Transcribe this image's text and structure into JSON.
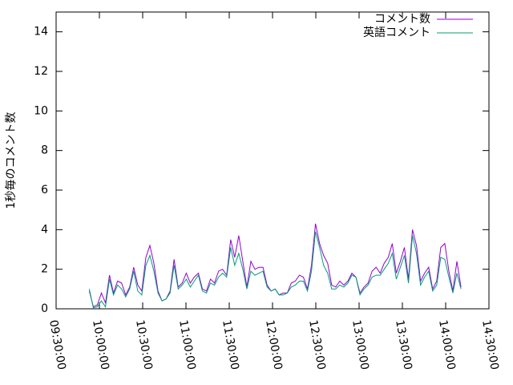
{
  "chart_data": {
    "type": "line",
    "ylabel": "1秒毎のコメント数",
    "xlim": [
      "09:30:00",
      "14:30:00"
    ],
    "xticks": [
      "09:30:00",
      "10:00:00",
      "10:30:00",
      "11:00:00",
      "11:30:00",
      "12:00:00",
      "12:30:00",
      "13:00:00",
      "13:30:00",
      "14:00:00",
      "14:30:00"
    ],
    "ylim": [
      0,
      15
    ],
    "yticks": [
      0,
      2,
      4,
      6,
      8,
      10,
      12,
      14
    ],
    "legend": "top-right",
    "x": [
      "09:53:00",
      "09:55:48",
      "09:58:36",
      "10:01:24",
      "10:04:12",
      "10:07:00",
      "10:09:48",
      "10:12:36",
      "10:15:24",
      "10:18:12",
      "10:21:00",
      "10:23:48",
      "10:26:36",
      "10:29:24",
      "10:32:12",
      "10:35:00",
      "10:37:48",
      "10:40:36",
      "10:43:24",
      "10:46:12",
      "10:49:00",
      "10:51:48",
      "10:54:36",
      "10:57:24",
      "11:00:12",
      "11:03:00",
      "11:05:48",
      "11:08:36",
      "11:11:24",
      "11:14:12",
      "11:17:00",
      "11:19:48",
      "11:22:36",
      "11:25:24",
      "11:28:12",
      "11:31:00",
      "11:33:48",
      "11:36:36",
      "11:39:24",
      "11:42:12",
      "11:45:00",
      "11:47:48",
      "11:50:36",
      "11:53:24",
      "11:56:12",
      "11:59:00",
      "12:01:48",
      "12:04:36",
      "12:07:24",
      "12:10:12",
      "12:13:00",
      "12:15:48",
      "12:18:36",
      "12:21:24",
      "12:24:12",
      "12:27:00",
      "12:29:48",
      "12:32:36",
      "12:35:24",
      "12:38:12",
      "12:41:00",
      "12:43:48",
      "12:46:36",
      "12:49:24",
      "12:52:12",
      "12:55:00",
      "12:57:48",
      "13:00:36",
      "13:03:24",
      "13:06:12",
      "13:09:00",
      "13:11:48",
      "13:14:36",
      "13:17:24",
      "13:20:12",
      "13:23:00",
      "13:25:48",
      "13:28:36",
      "13:31:24",
      "13:34:12",
      "13:37:00",
      "13:39:48",
      "13:42:36",
      "13:45:24",
      "13:48:12",
      "13:51:00",
      "13:53:48",
      "13:56:36",
      "13:59:24",
      "14:02:12",
      "14:05:00",
      "14:07:48",
      "14:10:36"
    ],
    "series": [
      {
        "name": "コメント数",
        "color": "#9400d3",
        "values": [
          0.9,
          0.1,
          0.2,
          0.8,
          0.3,
          1.7,
          0.8,
          1.4,
          1.3,
          0.7,
          1.1,
          2.1,
          1.2,
          0.9,
          2.6,
          3.2,
          2.3,
          0.9,
          0.4,
          0.5,
          0.9,
          2.5,
          1.1,
          1.3,
          1.8,
          1.3,
          1.6,
          1.8,
          1.0,
          0.9,
          1.5,
          1.3,
          1.9,
          2.0,
          1.7,
          3.5,
          2.6,
          3.7,
          2.4,
          1.1,
          2.4,
          2.0,
          2.1,
          2.1,
          1.2,
          0.9,
          1.0,
          0.7,
          0.8,
          0.8,
          1.3,
          1.4,
          1.7,
          1.6,
          1.0,
          2.2,
          4.3,
          3.3,
          2.7,
          2.3,
          1.2,
          1.1,
          1.4,
          1.2,
          1.4,
          1.8,
          1.6,
          0.8,
          1.1,
          1.3,
          1.9,
          2.1,
          1.8,
          2.3,
          2.6,
          3.3,
          1.8,
          2.4,
          3.1,
          1.5,
          4.0,
          3.2,
          1.4,
          1.8,
          2.1,
          1.0,
          1.4,
          3.1,
          3.3,
          1.9,
          0.9,
          2.4,
          1.1
        ]
      },
      {
        "name": "英語コメント",
        "color": "#009e73",
        "values": [
          1.0,
          0.05,
          0.1,
          0.4,
          0.1,
          1.5,
          0.7,
          1.2,
          1.0,
          0.6,
          1.0,
          1.9,
          0.9,
          0.7,
          2.2,
          2.7,
          1.9,
          0.8,
          0.4,
          0.5,
          0.8,
          2.2,
          1.0,
          1.2,
          1.5,
          1.1,
          1.4,
          1.7,
          0.9,
          0.8,
          1.3,
          1.2,
          1.6,
          1.8,
          1.6,
          3.1,
          2.2,
          2.8,
          2.0,
          1.0,
          1.9,
          1.7,
          1.8,
          1.9,
          1.1,
          0.9,
          1.0,
          0.7,
          0.7,
          0.8,
          1.1,
          1.2,
          1.4,
          1.4,
          0.9,
          1.9,
          3.9,
          3.1,
          2.2,
          1.8,
          1.0,
          1.0,
          1.2,
          1.1,
          1.3,
          1.7,
          1.6,
          0.7,
          1.0,
          1.2,
          1.6,
          1.7,
          1.7,
          2.0,
          2.3,
          2.8,
          1.5,
          2.1,
          2.7,
          1.3,
          3.7,
          2.8,
          1.2,
          1.6,
          1.9,
          0.9,
          1.2,
          2.6,
          2.5,
          1.6,
          0.8,
          1.8,
          1.0
        ]
      }
    ]
  }
}
